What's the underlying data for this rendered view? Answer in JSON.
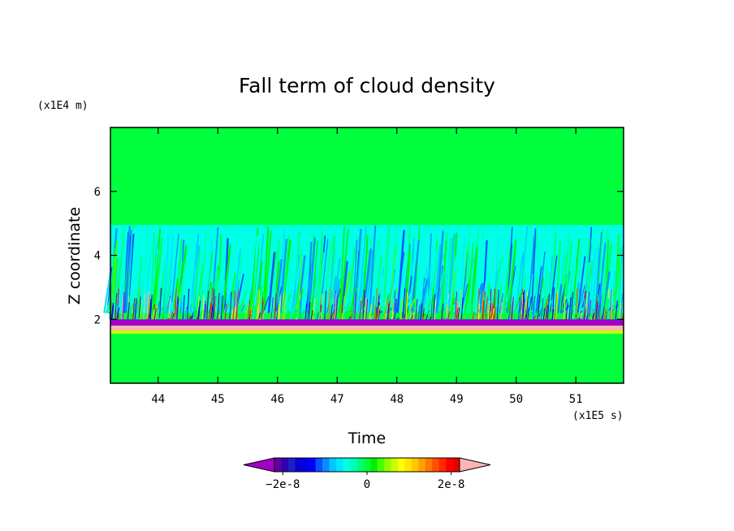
{
  "chart_data": {
    "type": "heatmap",
    "title": "Fall term of cloud density",
    "xlabel": "Time",
    "ylabel": "Z coordinate",
    "x_unit": "(x1E5 s)",
    "y_unit": "(x1E4 m)",
    "xlim": [
      43.2,
      51.8
    ],
    "ylim": [
      0,
      8
    ],
    "x_ticks": [
      44,
      45,
      46,
      47,
      48,
      49,
      50,
      51
    ],
    "y_ticks": [
      2,
      4,
      6
    ],
    "background_value": 0,
    "layers": [
      {
        "kind": "uniform",
        "z_from": 4.95,
        "z_to": 8.0,
        "value": 0
      },
      {
        "kind": "streaks",
        "z_from": 2.2,
        "z_to": 4.95,
        "value_range": [
          -1.2e-08,
          3e-09
        ]
      },
      {
        "kind": "streaks-strong",
        "z_from": 2.0,
        "z_to": 3.0,
        "value_range": [
          -2.5e-08,
          2.5e-08
        ]
      },
      {
        "kind": "band",
        "z_from": 1.8,
        "z_to": 2.0,
        "value": -2.3e-08
      },
      {
        "kind": "band",
        "z_from": 1.65,
        "z_to": 1.8,
        "value": 2.4e-08
      },
      {
        "kind": "band",
        "z_from": 1.55,
        "z_to": 1.65,
        "value": 6e-09
      },
      {
        "kind": "uniform",
        "z_from": 0.0,
        "z_to": 1.55,
        "value": 0
      }
    ],
    "colorbar": {
      "min": -2.2e-08,
      "max": 2.2e-08,
      "tick_labels": [
        "−2e-8",
        "0",
        "2e-8"
      ],
      "tick_values": [
        -2e-08,
        0,
        2e-08
      ],
      "extend": "both",
      "under_color": "#a000c8",
      "over_color": "#ffb4b4",
      "colors": [
        "#64009a",
        "#2d00b4",
        "#1e1ec8",
        "#0a00d2",
        "#0000e6",
        "#0000ff",
        "#0a50ff",
        "#0a8cff",
        "#00c8ff",
        "#00e6ff",
        "#00ffe6",
        "#00ffb4",
        "#00ff78",
        "#00ff3c",
        "#00f000",
        "#46ff00",
        "#8cff00",
        "#c8ff00",
        "#ffff00",
        "#ffe600",
        "#ffc800",
        "#ffa000",
        "#ff7800",
        "#ff5000",
        "#ff2800",
        "#ff0000",
        "#e60000"
      ]
    }
  }
}
